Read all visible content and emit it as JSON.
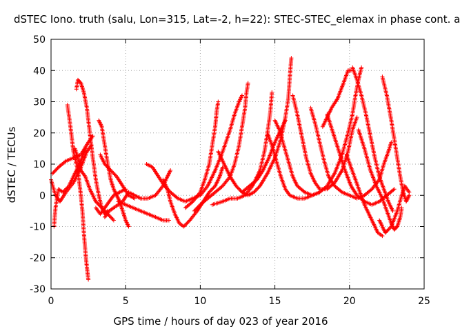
{
  "chart_data": {
    "type": "scatter",
    "title": "dSTEC Iono. truth (salu, Lon=315, Lat=-2, h=22): STEC-STEC_elemax in phase cont. a",
    "xlabel": "GPS time / hours of day 023 of year 2016",
    "ylabel": "dSTEC  / TECUs",
    "xlim": [
      0,
      25
    ],
    "ylim": [
      -30,
      50
    ],
    "xticks": [
      "0",
      "5",
      "10",
      "15",
      "20",
      "25"
    ],
    "yticks": [
      "-30",
      "-20",
      "-10",
      "0",
      "10",
      "20",
      "30",
      "40",
      "50"
    ],
    "grid": true,
    "marker": "+",
    "color": "#ff0000",
    "series": [
      {
        "points": [
          [
            0.0,
            5
          ],
          [
            0.3,
            0
          ],
          [
            0.6,
            -2
          ],
          [
            1.0,
            1
          ],
          [
            1.5,
            4
          ],
          [
            2.0,
            9
          ],
          [
            2.4,
            14
          ],
          [
            2.7,
            16
          ]
        ]
      },
      {
        "points": [
          [
            0.1,
            7
          ],
          [
            0.5,
            9
          ],
          [
            1.0,
            11
          ],
          [
            1.5,
            12
          ],
          [
            2.0,
            13
          ],
          [
            2.5,
            17
          ],
          [
            2.8,
            19
          ]
        ]
      },
      {
        "points": [
          [
            0.2,
            -10
          ],
          [
            0.3,
            -4
          ],
          [
            0.5,
            2
          ],
          [
            0.8,
            1
          ],
          [
            1.2,
            3
          ],
          [
            1.6,
            7
          ],
          [
            2.0,
            11
          ],
          [
            2.3,
            15
          ]
        ]
      },
      {
        "points": [
          [
            1.1,
            29
          ],
          [
            1.3,
            22
          ],
          [
            1.5,
            14
          ],
          [
            1.8,
            8
          ],
          [
            2.0,
            0
          ],
          [
            2.1,
            -5
          ],
          [
            2.2,
            -12
          ],
          [
            2.3,
            -18
          ],
          [
            2.4,
            -23
          ],
          [
            2.5,
            -27
          ]
        ]
      },
      {
        "points": [
          [
            1.7,
            34
          ],
          [
            1.8,
            37
          ],
          [
            2.0,
            36
          ],
          [
            2.2,
            33
          ],
          [
            2.4,
            28
          ],
          [
            2.6,
            20
          ],
          [
            2.8,
            12
          ],
          [
            3.0,
            5
          ],
          [
            3.2,
            0
          ],
          [
            3.4,
            -4
          ],
          [
            3.6,
            -6
          ],
          [
            3.8,
            -5
          ]
        ]
      },
      {
        "points": [
          [
            1.6,
            15
          ],
          [
            1.8,
            12
          ],
          [
            2.0,
            8
          ],
          [
            2.3,
            6
          ],
          [
            2.6,
            2
          ],
          [
            3.0,
            -2
          ],
          [
            3.4,
            -4
          ],
          [
            3.8,
            -6
          ],
          [
            4.2,
            -8
          ]
        ]
      },
      {
        "points": [
          [
            3.2,
            24
          ],
          [
            3.4,
            22
          ],
          [
            3.6,
            16
          ],
          [
            3.8,
            10
          ],
          [
            4.0,
            5
          ],
          [
            4.2,
            2
          ],
          [
            4.4,
            0
          ],
          [
            4.6,
            -2
          ],
          [
            4.8,
            -5
          ],
          [
            5.0,
            -8
          ],
          [
            5.2,
            -10
          ]
        ]
      },
      {
        "points": [
          [
            3.3,
            13
          ],
          [
            3.6,
            10
          ],
          [
            4.0,
            8
          ],
          [
            4.4,
            6
          ],
          [
            4.8,
            3
          ],
          [
            5.2,
            0
          ],
          [
            5.6,
            -1
          ]
        ]
      },
      {
        "points": [
          [
            3.0,
            -4
          ],
          [
            3.3,
            -6
          ],
          [
            3.6,
            -4
          ],
          [
            3.9,
            -2
          ],
          [
            4.2,
            0
          ],
          [
            4.6,
            1
          ],
          [
            5.0,
            2
          ]
        ]
      },
      {
        "points": [
          [
            3.6,
            -7
          ],
          [
            3.9,
            -5
          ],
          [
            4.2,
            -4
          ],
          [
            4.5,
            -3
          ],
          [
            4.8,
            -2
          ],
          [
            5.2,
            1
          ],
          [
            5.6,
            0
          ],
          [
            6.0,
            -1
          ],
          [
            6.5,
            -1
          ],
          [
            7.0,
            0
          ],
          [
            7.5,
            3
          ],
          [
            7.8,
            6
          ],
          [
            8.0,
            8
          ]
        ]
      },
      {
        "points": [
          [
            6.4,
            10
          ],
          [
            6.8,
            9
          ],
          [
            7.2,
            6
          ],
          [
            7.6,
            3
          ],
          [
            8.0,
            1
          ],
          [
            8.5,
            -1
          ],
          [
            9.0,
            -2
          ],
          [
            9.5,
            -1
          ],
          [
            10.0,
            0
          ],
          [
            10.5,
            3
          ],
          [
            11.0,
            8
          ],
          [
            11.5,
            14
          ],
          [
            12.0,
            21
          ],
          [
            12.3,
            26
          ],
          [
            12.6,
            30
          ],
          [
            12.8,
            32
          ]
        ]
      },
      {
        "points": [
          [
            4.5,
            -2
          ],
          [
            5.0,
            -3
          ],
          [
            5.5,
            -4
          ],
          [
            6.0,
            -5
          ],
          [
            6.5,
            -6
          ],
          [
            7.0,
            -7
          ],
          [
            7.5,
            -8
          ],
          [
            7.9,
            -8
          ]
        ]
      },
      {
        "points": [
          [
            7.5,
            5
          ],
          [
            7.8,
            2
          ],
          [
            8.0,
            -2
          ],
          [
            8.3,
            -6
          ],
          [
            8.6,
            -9
          ],
          [
            8.9,
            -10
          ],
          [
            9.3,
            -8
          ],
          [
            9.8,
            -5
          ],
          [
            10.2,
            -2
          ],
          [
            10.6,
            1
          ],
          [
            11.0,
            3
          ],
          [
            11.3,
            6
          ],
          [
            11.5,
            9
          ]
        ]
      },
      {
        "points": [
          [
            9.0,
            -4
          ],
          [
            9.5,
            -2
          ],
          [
            10.0,
            1
          ],
          [
            10.3,
            5
          ],
          [
            10.6,
            10
          ],
          [
            10.8,
            16
          ],
          [
            11.0,
            22
          ],
          [
            11.1,
            27
          ],
          [
            11.2,
            30
          ]
        ]
      },
      {
        "points": [
          [
            9.6,
            -5
          ],
          [
            10.0,
            -3
          ],
          [
            10.5,
            -1
          ],
          [
            11.0,
            1
          ],
          [
            11.5,
            3
          ],
          [
            12.0,
            6
          ],
          [
            12.3,
            10
          ],
          [
            12.6,
            16
          ],
          [
            12.8,
            22
          ],
          [
            13.0,
            28
          ],
          [
            13.1,
            33
          ],
          [
            13.2,
            36
          ]
        ]
      },
      {
        "points": [
          [
            10.8,
            -3
          ],
          [
            11.5,
            -2
          ],
          [
            12.0,
            -1
          ],
          [
            12.5,
            -1
          ],
          [
            13.0,
            0
          ],
          [
            13.5,
            3
          ],
          [
            14.0,
            8
          ],
          [
            14.3,
            14
          ],
          [
            14.5,
            20
          ],
          [
            14.7,
            27
          ],
          [
            14.8,
            33
          ]
        ]
      },
      {
        "points": [
          [
            11.2,
            14
          ],
          [
            11.6,
            10
          ],
          [
            12.0,
            6
          ],
          [
            12.4,
            3
          ],
          [
            12.8,
            1
          ],
          [
            13.2,
            0
          ],
          [
            13.6,
            1
          ],
          [
            14.0,
            3
          ],
          [
            14.5,
            7
          ],
          [
            15.0,
            12
          ],
          [
            15.4,
            18
          ],
          [
            15.7,
            25
          ],
          [
            15.9,
            31
          ],
          [
            16.0,
            38
          ],
          [
            16.1,
            44
          ]
        ]
      },
      {
        "points": [
          [
            12.8,
            1
          ],
          [
            13.3,
            3
          ],
          [
            13.8,
            5
          ],
          [
            14.2,
            8
          ],
          [
            14.6,
            12
          ],
          [
            15.0,
            17
          ],
          [
            15.4,
            21
          ],
          [
            15.7,
            24
          ]
        ]
      },
      {
        "points": [
          [
            14.5,
            20
          ],
          [
            14.8,
            16
          ],
          [
            15.1,
            11
          ],
          [
            15.4,
            6
          ],
          [
            15.7,
            2
          ],
          [
            16.0,
            0
          ],
          [
            16.5,
            -1
          ],
          [
            17.0,
            -1
          ],
          [
            17.5,
            0
          ],
          [
            18.0,
            1
          ]
        ]
      },
      {
        "points": [
          [
            15.0,
            24
          ],
          [
            15.3,
            21
          ],
          [
            15.6,
            16
          ],
          [
            15.9,
            11
          ],
          [
            16.2,
            6
          ],
          [
            16.5,
            3
          ],
          [
            17.0,
            1
          ],
          [
            17.5,
            0
          ],
          [
            18.0,
            1
          ],
          [
            18.5,
            3
          ],
          [
            19.0,
            7
          ],
          [
            19.5,
            13
          ],
          [
            19.9,
            20
          ],
          [
            20.2,
            26
          ],
          [
            20.4,
            32
          ],
          [
            20.6,
            37
          ],
          [
            20.8,
            41
          ]
        ]
      },
      {
        "points": [
          [
            16.2,
            32
          ],
          [
            16.5,
            26
          ],
          [
            16.8,
            19
          ],
          [
            17.1,
            12
          ],
          [
            17.4,
            7
          ],
          [
            17.7,
            4
          ],
          [
            18.0,
            2
          ],
          [
            18.5,
            2
          ],
          [
            19.0,
            4
          ],
          [
            19.5,
            8
          ],
          [
            19.9,
            14
          ],
          [
            20.2,
            21
          ],
          [
            20.5,
            25
          ]
        ]
      },
      {
        "points": [
          [
            17.4,
            28
          ],
          [
            17.7,
            23
          ],
          [
            18.0,
            17
          ],
          [
            18.3,
            11
          ],
          [
            18.6,
            6
          ],
          [
            19.0,
            3
          ],
          [
            19.5,
            1
          ],
          [
            20.0,
            0
          ],
          [
            20.5,
            -1
          ],
          [
            21.0,
            0
          ],
          [
            21.5,
            2
          ],
          [
            22.0,
            5
          ],
          [
            22.3,
            10
          ],
          [
            22.6,
            14
          ],
          [
            22.8,
            17
          ]
        ]
      },
      {
        "points": [
          [
            18.2,
            22
          ],
          [
            18.5,
            25
          ],
          [
            18.8,
            28
          ],
          [
            19.2,
            31
          ],
          [
            19.6,
            36
          ],
          [
            19.9,
            40
          ],
          [
            20.1,
            40
          ]
        ]
      },
      {
        "points": [
          [
            18.5,
            26
          ],
          [
            18.9,
            20
          ],
          [
            19.3,
            14
          ],
          [
            19.7,
            8
          ],
          [
            20.1,
            3
          ],
          [
            20.5,
            0
          ],
          [
            21.0,
            -2
          ],
          [
            21.5,
            -3
          ],
          [
            22.0,
            -2
          ],
          [
            22.5,
            0
          ],
          [
            23.0,
            2
          ]
        ]
      },
      {
        "points": [
          [
            20.2,
            41
          ],
          [
            20.5,
            37
          ],
          [
            20.8,
            32
          ],
          [
            21.1,
            26
          ],
          [
            21.4,
            19
          ],
          [
            21.7,
            12
          ],
          [
            22.0,
            6
          ],
          [
            22.3,
            2
          ],
          [
            22.6,
            -2
          ],
          [
            22.9,
            -5
          ]
        ]
      },
      {
        "points": [
          [
            19.8,
            13
          ],
          [
            20.1,
            9
          ],
          [
            20.4,
            5
          ],
          [
            20.7,
            1
          ],
          [
            21.0,
            -3
          ],
          [
            21.3,
            -6
          ],
          [
            21.6,
            -9
          ],
          [
            21.9,
            -12
          ],
          [
            22.2,
            -13
          ]
        ]
      },
      {
        "points": [
          [
            20.6,
            21
          ],
          [
            21.0,
            15
          ],
          [
            21.4,
            8
          ],
          [
            21.8,
            3
          ],
          [
            22.2,
            -1
          ],
          [
            22.5,
            -5
          ],
          [
            22.8,
            -9
          ],
          [
            23.0,
            -11
          ],
          [
            23.2,
            -10
          ],
          [
            23.4,
            -7
          ],
          [
            23.5,
            -4
          ]
        ]
      },
      {
        "points": [
          [
            22.2,
            38
          ],
          [
            22.5,
            32
          ],
          [
            22.8,
            24
          ],
          [
            23.0,
            18
          ],
          [
            23.2,
            12
          ],
          [
            23.4,
            6
          ],
          [
            23.6,
            1
          ],
          [
            23.8,
            -2
          ],
          [
            24.0,
            0
          ]
        ]
      },
      {
        "points": [
          [
            22.0,
            -8
          ],
          [
            22.4,
            -12
          ],
          [
            22.8,
            -10
          ],
          [
            23.2,
            -5
          ],
          [
            23.5,
            0
          ],
          [
            23.7,
            3
          ],
          [
            24.0,
            1
          ]
        ]
      }
    ]
  }
}
